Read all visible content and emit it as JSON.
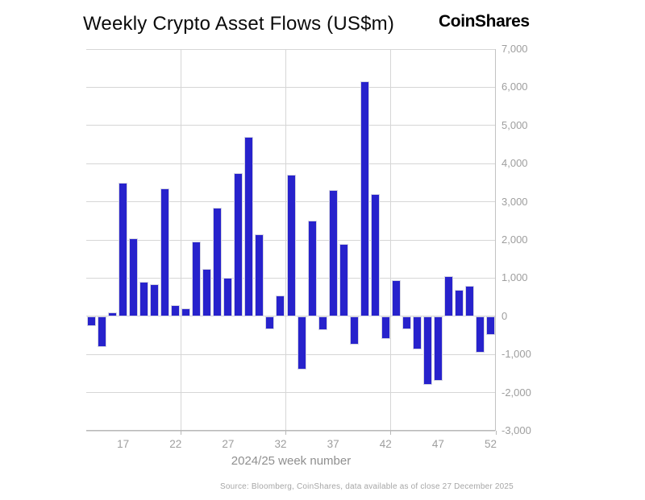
{
  "header": {
    "title": "Weekly Crypto Asset Flows (US$m)",
    "brand": "CoinShares"
  },
  "footer": {
    "source_note": "Source: Bloomberg, CoinShares, data available as of close 27 December 2025"
  },
  "chart_data": {
    "type": "bar",
    "title": "Weekly Crypto Asset Flows (US$m)",
    "xlabel": "2024/25 week number",
    "ylabel": "",
    "x": [
      14,
      15,
      16,
      17,
      18,
      19,
      20,
      21,
      22,
      23,
      24,
      25,
      26,
      27,
      28,
      29,
      30,
      31,
      32,
      33,
      34,
      35,
      36,
      37,
      38,
      39,
      40,
      41,
      42,
      43,
      44,
      45,
      46,
      47,
      48,
      49,
      50,
      51,
      52
    ],
    "values": [
      -250,
      -800,
      100,
      3500,
      2050,
      900,
      850,
      3350,
      300,
      200,
      1950,
      1250,
      2850,
      1000,
      3750,
      4700,
      2150,
      -350,
      550,
      3700,
      -1400,
      2500,
      -370,
      3300,
      1900,
      -750,
      6150,
      3200,
      -600,
      950,
      -350,
      -870,
      -1800,
      -1690,
      1050,
      700,
      800,
      -950,
      -480
    ],
    "ylim": [
      -3000,
      7000
    ],
    "yticks": [
      7000,
      6000,
      5000,
      4000,
      3000,
      2000,
      1000,
      0,
      -1000,
      -2000,
      -3000
    ],
    "xticks": [
      17,
      22,
      27,
      32,
      37,
      42,
      47,
      52
    ],
    "x_range": [
      13.5,
      52.5
    ],
    "vgrid_weeks": [
      22.5,
      32.5,
      42.5,
      52.5
    ],
    "bar_color": "#2722cc",
    "grid": "on",
    "legend": "none",
    "y_axis_side": "right"
  }
}
